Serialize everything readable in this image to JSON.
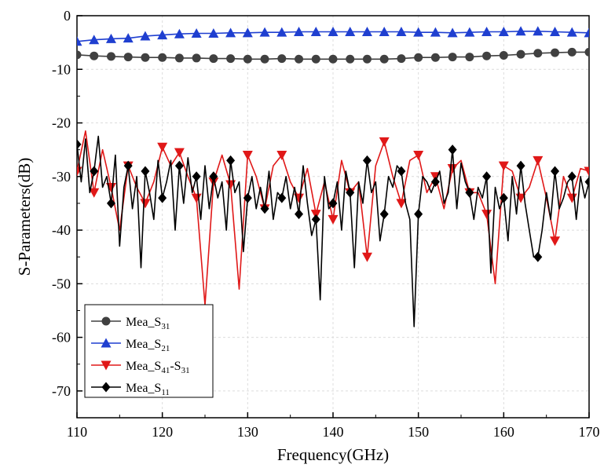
{
  "chart_data": {
    "type": "line",
    "title": "",
    "xlabel": "Frequency(GHz)",
    "ylabel": "S-Parameters(dB)",
    "xlim": [
      110,
      170
    ],
    "ylim": [
      -75,
      0
    ],
    "x_ticks": [
      110,
      120,
      130,
      140,
      150,
      160,
      170
    ],
    "y_ticks": [
      0,
      -10,
      -20,
      -30,
      -40,
      -50,
      -60,
      -70
    ],
    "grid": true,
    "legend_position": "bottom-left",
    "series": [
      {
        "name": "Mea_S31",
        "label_main": "Mea_S",
        "label_sub": "31",
        "color": "#404040",
        "marker": "circle",
        "x": [
          110,
          112,
          114,
          116,
          118,
          120,
          122,
          124,
          126,
          128,
          130,
          132,
          134,
          136,
          138,
          140,
          142,
          144,
          146,
          148,
          150,
          152,
          154,
          156,
          158,
          160,
          162,
          164,
          166,
          168,
          170
        ],
        "y": [
          -7.3,
          -7.5,
          -7.6,
          -7.7,
          -7.8,
          -7.8,
          -7.9,
          -7.9,
          -8.0,
          -8.0,
          -8.1,
          -8.1,
          -8.0,
          -8.1,
          -8.1,
          -8.1,
          -8.1,
          -8.1,
          -8.1,
          -8.0,
          -7.8,
          -7.8,
          -7.7,
          -7.7,
          -7.5,
          -7.4,
          -7.2,
          -7.0,
          -6.9,
          -6.8,
          -6.8
        ]
      },
      {
        "name": "Mea_S21",
        "label_main": "Mea_S",
        "label_sub": "21",
        "color": "#1f3fd0",
        "marker": "triangle-up",
        "x": [
          110,
          112,
          114,
          116,
          118,
          120,
          122,
          124,
          126,
          128,
          130,
          132,
          134,
          136,
          138,
          140,
          142,
          144,
          146,
          148,
          150,
          152,
          154,
          156,
          158,
          160,
          162,
          164,
          166,
          168,
          170
        ],
        "y": [
          -4.8,
          -4.5,
          -4.3,
          -4.2,
          -3.8,
          -3.6,
          -3.4,
          -3.3,
          -3.3,
          -3.2,
          -3.2,
          -3.1,
          -3.1,
          -3.0,
          -3.0,
          -3.0,
          -3.0,
          -3.0,
          -3.0,
          -3.0,
          -3.1,
          -3.1,
          -3.2,
          -3.1,
          -3.0,
          -3.0,
          -2.9,
          -2.9,
          -3.0,
          -3.1,
          -3.2
        ]
      },
      {
        "name": "Mea_S41-S31",
        "label_main": "Mea_S",
        "label_sub": "41",
        "label_main2": "-S",
        "label_sub2": "31",
        "color": "#e01818",
        "marker": "triangle-down",
        "x": [
          110,
          111,
          112,
          113,
          114,
          115,
          116,
          117,
          118,
          119,
          120,
          121,
          122,
          123,
          124,
          125,
          126,
          127,
          128,
          129,
          130,
          131,
          132,
          133,
          134,
          135,
          136,
          137,
          138,
          139,
          140,
          141,
          142,
          143,
          144,
          145,
          146,
          147,
          148,
          149,
          150,
          151,
          152,
          153,
          154,
          155,
          156,
          157,
          158,
          159,
          160,
          161,
          162,
          163,
          164,
          165,
          166,
          167,
          168,
          169,
          170
        ],
        "y": [
          -29,
          -21.5,
          -33,
          -25,
          -32,
          -40,
          -28,
          -32,
          -35,
          -31,
          -24.5,
          -28,
          -25.5,
          -30,
          -34,
          -54,
          -31,
          -26,
          -31.5,
          -51,
          -26,
          -30,
          -36,
          -28,
          -26,
          -31,
          -34,
          -28.5,
          -37,
          -31,
          -38,
          -27,
          -33,
          -31,
          -45,
          -28,
          -23.5,
          -30,
          -35,
          -27,
          -26,
          -33,
          -30,
          -36,
          -28.5,
          -27,
          -33,
          -33,
          -37,
          -50,
          -28,
          -29,
          -34,
          -32,
          -27,
          -34,
          -42,
          -30,
          -34,
          -28.5,
          -29
        ]
      },
      {
        "name": "Mea_S11",
        "label_main": "Mea_S",
        "label_sub": "11",
        "color": "#000000",
        "marker": "diamond",
        "x": [
          110,
          110.5,
          111,
          111.5,
          112,
          112.5,
          113,
          113.5,
          114,
          114.5,
          115,
          115.5,
          116,
          116.5,
          117,
          117.5,
          118,
          118.5,
          119,
          119.5,
          120,
          120.5,
          121,
          121.5,
          122,
          122.5,
          123,
          123.5,
          124,
          124.5,
          125,
          125.5,
          126,
          126.5,
          127,
          127.5,
          128,
          128.5,
          129,
          129.5,
          130,
          130.5,
          131,
          131.5,
          132,
          132.5,
          133,
          133.5,
          134,
          134.5,
          135,
          135.5,
          136,
          136.5,
          137,
          137.5,
          138,
          138.5,
          139,
          139.5,
          140,
          140.5,
          141,
          141.5,
          142,
          142.5,
          143,
          143.5,
          144,
          144.5,
          145,
          145.5,
          146,
          146.5,
          147,
          147.5,
          148,
          148.5,
          149,
          149.5,
          150,
          150.5,
          151,
          151.5,
          152,
          152.5,
          153,
          153.5,
          154,
          154.5,
          155,
          155.5,
          156,
          156.5,
          157,
          157.5,
          158,
          158.5,
          159,
          159.5,
          160,
          160.5,
          161,
          161.5,
          162,
          162.5,
          163,
          163.5,
          164,
          164.5,
          165,
          165.5,
          166,
          166.5,
          167,
          167.5,
          168,
          168.5,
          169,
          169.5,
          170
        ],
        "y": [
          -24,
          -31,
          -23,
          -33,
          -29,
          -22.5,
          -32,
          -30,
          -35,
          -26,
          -43,
          -32,
          -28,
          -36,
          -30,
          -47,
          -29,
          -33,
          -38,
          -27,
          -34,
          -31,
          -27,
          -40,
          -28,
          -35,
          -26.5,
          -33,
          -30,
          -38,
          -28,
          -36,
          -30,
          -34,
          -31,
          -40,
          -27,
          -33,
          -31,
          -44,
          -34,
          -30,
          -36,
          -32,
          -36,
          -29,
          -38,
          -33,
          -34,
          -30,
          -36,
          -32,
          -37,
          -28,
          -35,
          -41,
          -38,
          -53,
          -30,
          -36,
          -35,
          -31,
          -40,
          -29,
          -33,
          -47,
          -31,
          -35,
          -27,
          -33,
          -31,
          -42,
          -37,
          -30,
          -32,
          -28,
          -29,
          -35,
          -38,
          -58,
          -37,
          -30,
          -31,
          -33,
          -31,
          -29,
          -35,
          -33,
          -25,
          -36,
          -27.5,
          -31,
          -33,
          -38,
          -32,
          -34,
          -30,
          -48,
          -32,
          -36,
          -34,
          -42,
          -30,
          -37,
          -28,
          -35,
          -40,
          -45,
          -45,
          -40,
          -33,
          -38,
          -29,
          -36,
          -34,
          -31,
          -30,
          -38,
          -30,
          -34,
          -31
        ]
      }
    ]
  }
}
